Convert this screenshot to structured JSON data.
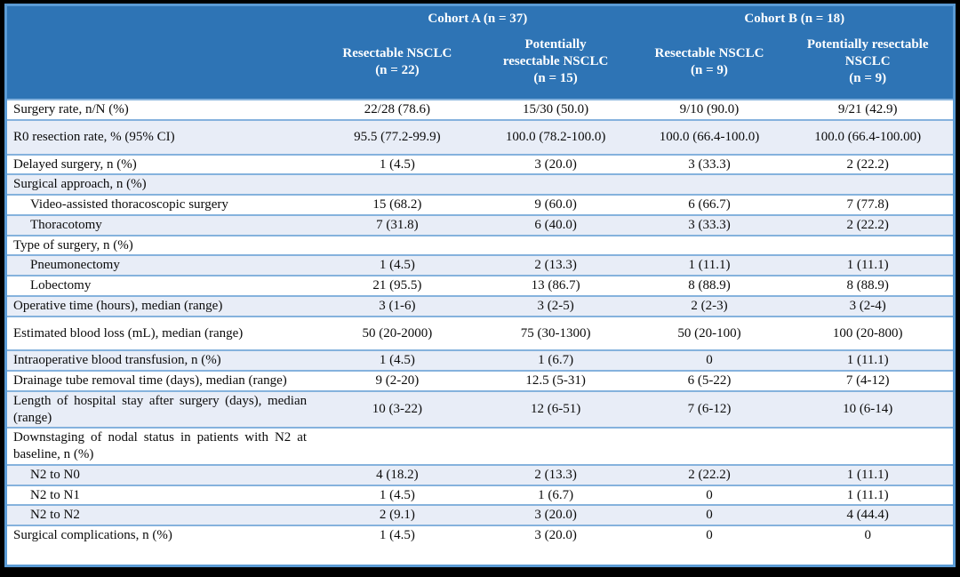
{
  "colors": {
    "header_bg": "#2E74B5",
    "outer_border": "#5B9BD5",
    "row_line": "#85B2DD",
    "stripe": "#E8EDF7",
    "header_text": "#FFFFFF",
    "body_text": "#0B0B0B",
    "frame_bg": "#000000"
  },
  "table": {
    "cohorts": [
      {
        "label": "Cohort A (n = 37)"
      },
      {
        "label": "Cohort B (n = 18)"
      }
    ],
    "columns": [
      {
        "title": "Resectable NSCLC\n(n = 22)"
      },
      {
        "title": "Potentially\nresectable NSCLC\n(n = 15)"
      },
      {
        "title": "Resectable NSCLC\n(n = 9)"
      },
      {
        "title": "Potentially resectable\nNSCLC\n(n = 9)"
      }
    ],
    "rows": [
      {
        "label": "Surgery rate, n/N (%)",
        "values": [
          "22/28 (78.6)",
          "15/30 (50.0)",
          "9/10 (90.0)",
          "9/21 (42.9)"
        ]
      },
      {
        "label": "R0 resection rate, % (95% CI)",
        "tall": true,
        "values": [
          "95.5 (77.2-99.9)",
          "100.0 (78.2-100.0)",
          "100.0 (66.4-100.0)",
          "100.0 (66.4-100.00)"
        ]
      },
      {
        "label": "Delayed surgery, n (%)",
        "values": [
          "1 (4.5)",
          "3 (20.0)",
          "3 (33.3)",
          "2 (22.2)"
        ]
      },
      {
        "label": "Surgical approach, n (%)",
        "section": true,
        "values": [
          "",
          "",
          "",
          ""
        ]
      },
      {
        "label": "Video-assisted thoracoscopic surgery",
        "indent": true,
        "values": [
          "15 (68.2)",
          "9 (60.0)",
          "6 (66.7)",
          "7 (77.8)"
        ]
      },
      {
        "label": "Thoracotomy",
        "indent": true,
        "values": [
          "7 (31.8)",
          "6 (40.0)",
          "3 (33.3)",
          "2 (22.2)"
        ]
      },
      {
        "label": "Type of surgery, n (%)",
        "section": true,
        "values": [
          "",
          "",
          "",
          ""
        ]
      },
      {
        "label": "Pneumonectomy",
        "indent": true,
        "values": [
          "1 (4.5)",
          "2 (13.3)",
          "1 (11.1)",
          "1 (11.1)"
        ]
      },
      {
        "label": "Lobectomy",
        "indent": true,
        "values": [
          "21 (95.5)",
          "13 (86.7)",
          "8 (88.9)",
          "8 (88.9)"
        ]
      },
      {
        "label": "Operative time (hours), median (range)",
        "values": [
          "3 (1-6)",
          "3 (2-5)",
          "2 (2-3)",
          "3 (2-4)"
        ]
      },
      {
        "label": "Estimated blood loss (mL), median (range)",
        "tall": true,
        "values": [
          "50 (20-2000)",
          "75 (30-1300)",
          "50 (20-100)",
          "100 (20-800)"
        ]
      },
      {
        "label": "Intraoperative blood transfusion, n (%)",
        "values": [
          "1 (4.5)",
          "1 (6.7)",
          "0",
          "1 (11.1)"
        ]
      },
      {
        "label": "Drainage tube removal time (days), median (range)",
        "values": [
          "9 (2-20)",
          "12.5 (5-31)",
          "6 (5-22)",
          "7 (4-12)"
        ]
      },
      {
        "label": "Length of hospital stay after surgery (days), median (range)",
        "values": [
          "10 (3-22)",
          "12 (6-51)",
          "7 (6-12)",
          "10 (6-14)"
        ]
      },
      {
        "label": "Downstaging of nodal status in patients with N2 at baseline, n (%)",
        "section": true,
        "values": [
          "",
          "",
          "",
          ""
        ]
      },
      {
        "label": "N2 to N0",
        "indent": true,
        "values": [
          "4 (18.2)",
          "2 (13.3)",
          "2 (22.2)",
          "1 (11.1)"
        ]
      },
      {
        "label": "N2 to N1",
        "indent": true,
        "values": [
          "1 (4.5)",
          "1 (6.7)",
          "0",
          "1 (11.1)"
        ]
      },
      {
        "label": "N2 to N2",
        "indent": true,
        "values": [
          "2 (9.1)",
          "3 (20.0)",
          "0",
          "4 (44.4)"
        ]
      },
      {
        "label": "Surgical complications, n (%)",
        "values": [
          "1 (4.5)",
          "3 (20.0)",
          "0",
          "0"
        ]
      }
    ]
  }
}
